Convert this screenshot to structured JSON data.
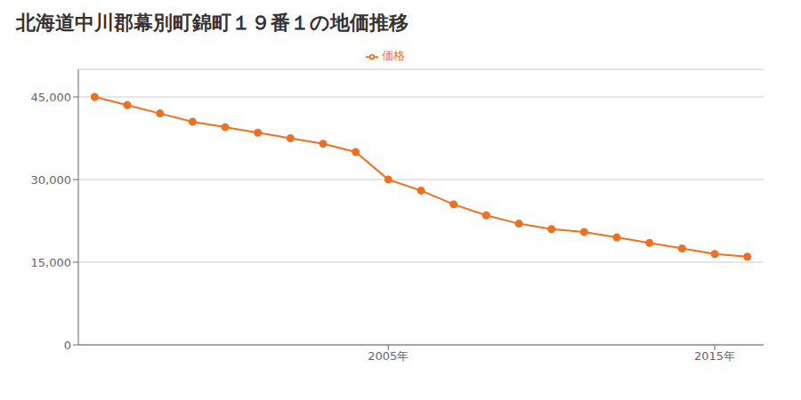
{
  "chart_data": {
    "type": "line",
    "title": "北海道中川郡幕別町錦町１９番１の地価推移",
    "x": [
      1996,
      1997,
      1998,
      1999,
      2000,
      2001,
      2002,
      2003,
      2004,
      2005,
      2006,
      2007,
      2008,
      2009,
      2010,
      2011,
      2012,
      2013,
      2014,
      2015,
      2016
    ],
    "series": [
      {
        "name": "価格",
        "color": "#f07020",
        "marker": "circle",
        "values": [
          45000,
          43500,
          42000,
          40500,
          39500,
          38500,
          37500,
          36500,
          35000,
          30000,
          28000,
          25500,
          23500,
          22000,
          21000,
          20500,
          19500,
          18500,
          17500,
          16500,
          16000
        ]
      }
    ],
    "xlim": [
      1995.5,
      2016.5
    ],
    "xticks": [
      {
        "value": 2005,
        "label": "2005年"
      },
      {
        "value": 2015,
        "label": "2015年"
      }
    ],
    "ylim": [
      0,
      50000
    ],
    "yticks": [
      0,
      {
        "value": 15000,
        "label": "15,000"
      },
      {
        "value": 30000,
        "label": "30,000"
      },
      {
        "value": 45000,
        "label": "45,000"
      }
    ],
    "grid": "y",
    "legend": "top"
  }
}
